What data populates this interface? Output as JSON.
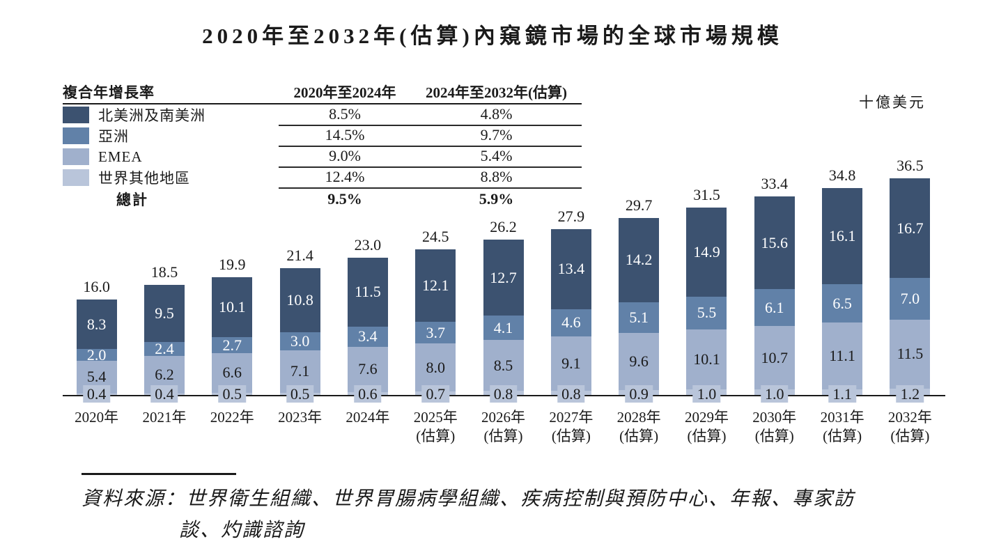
{
  "title": "2020年至2032年(估算)內窺鏡市場的全球市場規模",
  "unit_label": "十億美元",
  "cagr_table": {
    "header": {
      "col0": "複合年增長率",
      "col1": "2020年至2024年",
      "col2": "2024年至2032年(估算)"
    },
    "rows": [
      {
        "region": "北美洲及南美洲",
        "cagr_2020_2024": "8.5%",
        "cagr_2024_2032": "4.8%"
      },
      {
        "region": "亞洲",
        "cagr_2020_2024": "14.5%",
        "cagr_2024_2032": "9.7%"
      },
      {
        "region": "EMEA",
        "cagr_2020_2024": "9.0%",
        "cagr_2024_2032": "5.4%"
      },
      {
        "region": "世界其他地區",
        "cagr_2020_2024": "12.4%",
        "cagr_2024_2032": "8.8%"
      }
    ],
    "total": {
      "label": "總計",
      "cagr_2020_2024": "9.5%",
      "cagr_2024_2032": "5.9%"
    }
  },
  "chart_data": {
    "type": "bar",
    "stacked": true,
    "title": "2020年至2032年(估算)內窺鏡市場的全球市場規模",
    "ylabel": "十億美元",
    "ylim": [
      0,
      40
    ],
    "grid": false,
    "legend_position": "top-left-table",
    "categories": [
      {
        "label": "2020年",
        "note": ""
      },
      {
        "label": "2021年",
        "note": ""
      },
      {
        "label": "2022年",
        "note": ""
      },
      {
        "label": "2023年",
        "note": ""
      },
      {
        "label": "2024年",
        "note": ""
      },
      {
        "label": "2025年",
        "note": "(估算)"
      },
      {
        "label": "2026年",
        "note": "(估算)"
      },
      {
        "label": "2027年",
        "note": "(估算)"
      },
      {
        "label": "2028年",
        "note": "(估算)"
      },
      {
        "label": "2029年",
        "note": "(估算)"
      },
      {
        "label": "2030年",
        "note": "(估算)"
      },
      {
        "label": "2031年",
        "note": "(估算)"
      },
      {
        "label": "2032年",
        "note": "(估算)"
      }
    ],
    "series": [
      {
        "name": "北美洲及南美洲",
        "color": "#3C5270",
        "text_color": "#ffffff",
        "values": [
          8.3,
          9.5,
          10.1,
          10.8,
          11.5,
          12.1,
          12.7,
          13.4,
          14.2,
          14.9,
          15.6,
          16.1,
          16.7
        ]
      },
      {
        "name": "亞洲",
        "color": "#6181A8",
        "text_color": "#ffffff",
        "values": [
          2.0,
          2.4,
          2.7,
          3.0,
          3.4,
          3.7,
          4.1,
          4.6,
          5.1,
          5.5,
          6.1,
          6.5,
          7.0
        ]
      },
      {
        "name": "EMEA",
        "color": "#A0B0CC",
        "text_color": "#1a1a1a",
        "values": [
          5.4,
          6.2,
          6.6,
          7.1,
          7.6,
          8.0,
          8.5,
          9.1,
          9.6,
          10.1,
          10.7,
          11.1,
          11.5
        ]
      },
      {
        "name": "世界其他地區",
        "color": "#B9C5DA",
        "text_color": "#1a1a1a",
        "values": [
          0.4,
          0.4,
          0.5,
          0.5,
          0.6,
          0.7,
          0.8,
          0.8,
          0.9,
          1.0,
          1.0,
          1.1,
          1.2
        ]
      }
    ],
    "totals": [
      16.0,
      18.5,
      19.9,
      21.4,
      23.0,
      24.5,
      26.2,
      27.9,
      29.7,
      31.5,
      33.4,
      34.8,
      36.5
    ]
  },
  "source": {
    "line1": "資料來源：世界衛生組織、世界胃腸病學組織、疾病控制與預防中心、年報、專家訪",
    "line2": "談、灼識諮詢"
  },
  "colors": {
    "axis": "#1a1a1a",
    "americas": "#3C5270",
    "asia": "#6181A8",
    "emea": "#A0B0CC",
    "rest_of_world": "#B9C5DA"
  }
}
